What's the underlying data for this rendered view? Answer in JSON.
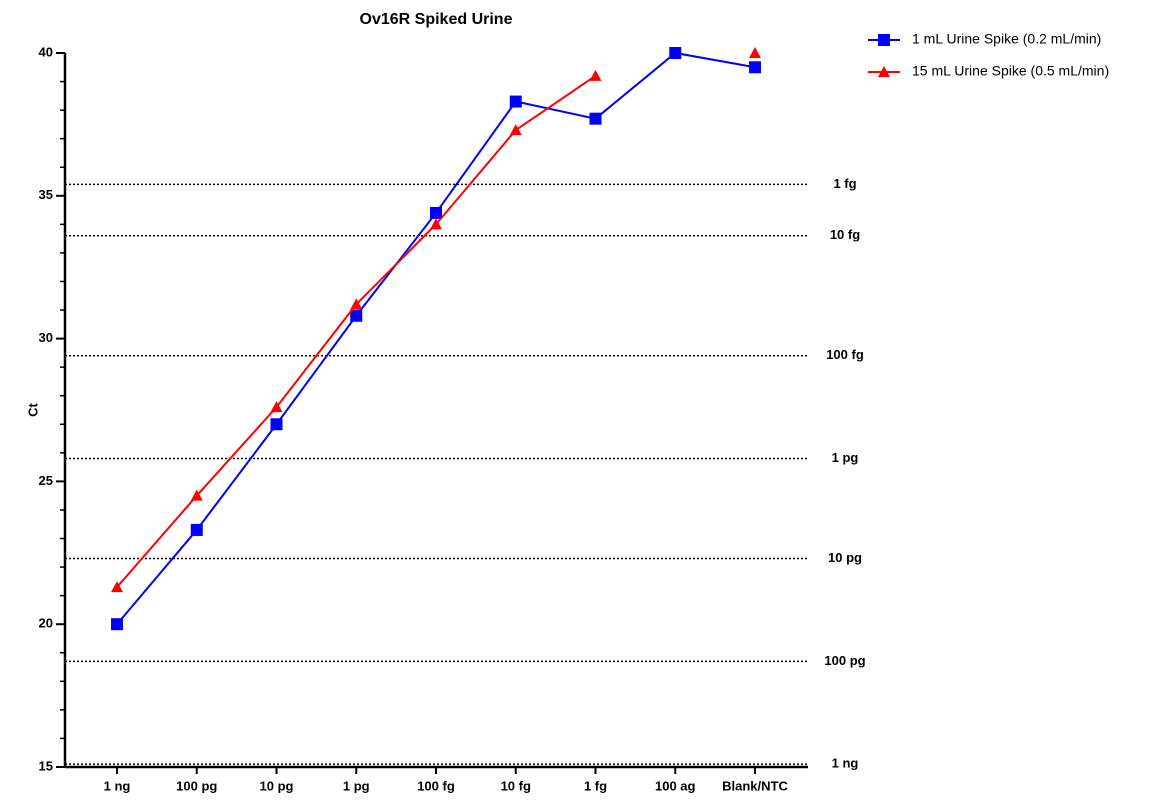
{
  "chart_data": {
    "type": "line",
    "title": "Ov16R Spiked Urine",
    "ylabel": "Ct",
    "categories": [
      "1 ng",
      "100 pg",
      "10 pg",
      "1 pg",
      "100 fg",
      "10 fg",
      "1 fg",
      "100 ag",
      "Blank/NTC"
    ],
    "series": [
      {
        "name": "1 mL Urine Spike (0.2 mL/min)",
        "color": "#0000ff",
        "marker": "square",
        "values": [
          20.0,
          23.3,
          27.0,
          30.8,
          34.4,
          38.3,
          37.7,
          40.0,
          39.5
        ]
      },
      {
        "name": "15 mL Urine Spike (0.5 mL/min)",
        "color": "#ff0000",
        "marker": "triangle",
        "values": [
          21.3,
          24.5,
          27.6,
          31.2,
          34.0,
          37.3,
          39.2,
          null,
          40.0
        ]
      }
    ],
    "ylim": [
      15,
      40
    ],
    "yticks": [
      15,
      20,
      25,
      30,
      35,
      40
    ],
    "reference_lines": [
      {
        "label": "1 fg",
        "value": 35.4
      },
      {
        "label": "10 fg",
        "value": 33.6
      },
      {
        "label": "100 fg",
        "value": 29.4
      },
      {
        "label": "1 pg",
        "value": 25.8
      },
      {
        "label": "10 pg",
        "value": 22.3
      },
      {
        "label": "100 pg",
        "value": 18.7
      },
      {
        "label": "1 ng",
        "value": 15.1
      }
    ],
    "legend": "top-right"
  }
}
